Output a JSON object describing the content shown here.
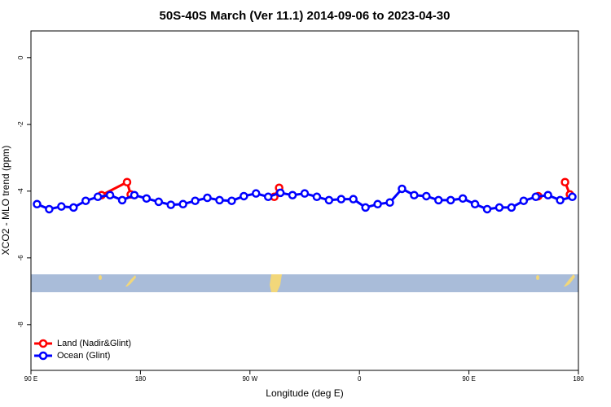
{
  "chart_data": {
    "type": "line",
    "title": "50S-40S March (Ver 11.1)   2014-09-06 to 2023-04-30",
    "xlabel": "Longitude (deg E)",
    "ylabel": "XCO2 - MLO trend (ppm)",
    "xlim": [
      90,
      540
    ],
    "ylim": [
      -9.37,
      0.8
    ],
    "xticks": [
      {
        "value": 90,
        "label": "90 E"
      },
      180,
      {
        "value": 270,
        "label": "90 W"
      },
      {
        "value": 360,
        "label": "0"
      },
      {
        "value": 450,
        "label": "90 E"
      },
      {
        "value": 540,
        "label": "180"
      }
    ],
    "yticks": [
      0,
      -2,
      -4,
      -6,
      -8
    ],
    "legend": "bottom-left",
    "series": [
      {
        "name": "Land (Nadir&Glint)",
        "color": "#ff0000",
        "x": [
          148,
          169,
          172,
          null,
          290,
          294,
          null,
          507,
          null,
          529,
          533
        ],
        "values": [
          -4.12,
          -3.73,
          -4.1,
          null,
          -4.17,
          -3.9,
          null,
          -4.15,
          null,
          -3.73,
          -4.1
        ]
      },
      {
        "name": "Ocean (Glint)",
        "color": "#0000ff",
        "x": [
          95,
          105,
          115,
          125,
          135,
          145,
          155,
          165,
          175,
          185,
          195,
          205,
          215,
          225,
          235,
          245,
          255,
          265,
          275,
          285,
          295,
          305,
          315,
          325,
          335,
          345,
          355,
          365,
          375,
          385,
          395,
          405,
          415,
          425,
          435,
          445,
          455,
          465,
          475,
          485,
          495,
          505,
          515,
          525,
          535
        ],
        "values": [
          -4.39,
          -4.54,
          -4.46,
          -4.49,
          -4.29,
          -4.17,
          -4.12,
          -4.27,
          -4.12,
          -4.22,
          -4.32,
          -4.41,
          -4.39,
          -4.29,
          -4.2,
          -4.27,
          -4.29,
          -4.15,
          -4.07,
          -4.17,
          -4.05,
          -4.12,
          -4.07,
          -4.17,
          -4.27,
          -4.24,
          -4.24,
          -4.49,
          -4.39,
          -4.34,
          -3.93,
          -4.12,
          -4.15,
          -4.27,
          -4.27,
          -4.22,
          -4.39,
          -4.54,
          -4.49,
          -4.49,
          -4.29,
          -4.17,
          -4.12,
          -4.27,
          -4.17
        ]
      }
    ]
  }
}
